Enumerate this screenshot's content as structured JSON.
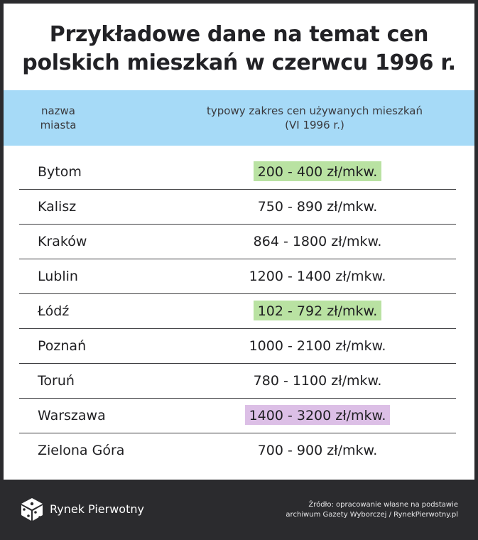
{
  "title": {
    "line1": "Przykładowe dane na temat cen",
    "line2": "polskich mieszkań w czerwcu 1996 r."
  },
  "table": {
    "header_city": "nazwa miasta",
    "header_price_line1": "typowy zakres cen używanych mieszkań",
    "header_price_line2": "(VI 1996 r.)",
    "rows": [
      {
        "city": "Bytom",
        "price": "200 - 400 zł/mkw.",
        "highlight": "#b9e2a2"
      },
      {
        "city": "Kalisz",
        "price": "750 - 890 zł/mkw.",
        "highlight": ""
      },
      {
        "city": "Kraków",
        "price": "864 - 1800 zł/mkw.",
        "highlight": ""
      },
      {
        "city": "Lublin",
        "price": "1200 - 1400 zł/mkw.",
        "highlight": ""
      },
      {
        "city": "Łódź",
        "price": "102 - 792 zł/mkw.",
        "highlight": "#b9e2a2"
      },
      {
        "city": "Poznań",
        "price": "1000 - 2100 zł/mkw.",
        "highlight": ""
      },
      {
        "city": "Toruń",
        "price": "780 - 1100 zł/mkw.",
        "highlight": ""
      },
      {
        "city": "Warszawa",
        "price": "1400 - 3200 zł/mkw.",
        "highlight": "#dcbfe6"
      },
      {
        "city": "Zielona Góra",
        "price": "700 - 900 zł/mkw.",
        "highlight": ""
      }
    ]
  },
  "footer": {
    "brand": "Rynek Pierwotny",
    "logo_icon": "cube-logo-icon",
    "source_line1": "Źródło: opracowanie własne na podstawie",
    "source_line2": "archiwum Gazety Wyborczej / RynekPierwotny.pl"
  },
  "colors": {
    "header_bg": "#a6daf7",
    "highlight_green": "#b9e2a2",
    "highlight_purple": "#dcbfe6",
    "frame_bg": "#2b2b2e"
  }
}
